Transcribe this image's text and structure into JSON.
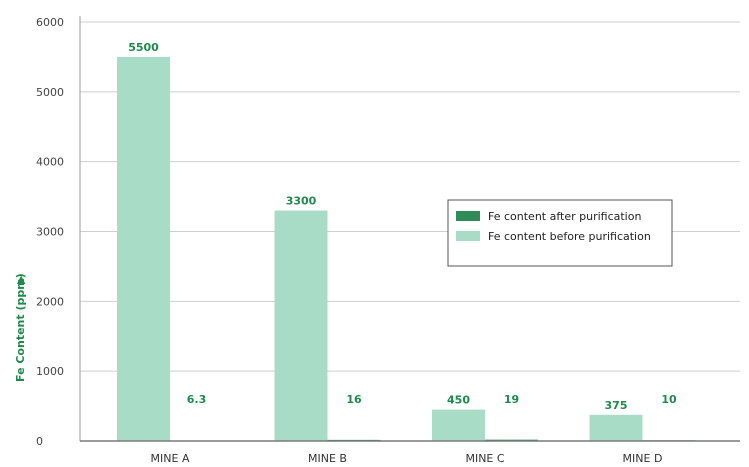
{
  "chart_data": {
    "type": "bar",
    "title": "",
    "xlabel": "",
    "ylabel": "Fe Content (ppm)",
    "ylabel_arrow": "▶",
    "ylim": [
      0,
      6000
    ],
    "yticks": [
      0,
      1000,
      2000,
      3000,
      4000,
      5000,
      6000
    ],
    "grid": true,
    "legend_position": "center-right",
    "categories": [
      "MINE A",
      "MINE B",
      "MINE C",
      "MINE D"
    ],
    "series": [
      {
        "name": "Fe content before purification",
        "color": "#a8dcc7",
        "values": [
          5500,
          3300,
          450,
          375
        ],
        "labels": [
          "5500",
          "3300",
          "450",
          "375"
        ]
      },
      {
        "name": "Fe content after purification",
        "color": "#2e8b57",
        "values": [
          6.3,
          16,
          19,
          10
        ],
        "labels": [
          "6.3",
          "16",
          "19",
          "10"
        ]
      }
    ],
    "legend_order": [
      1,
      0
    ]
  }
}
